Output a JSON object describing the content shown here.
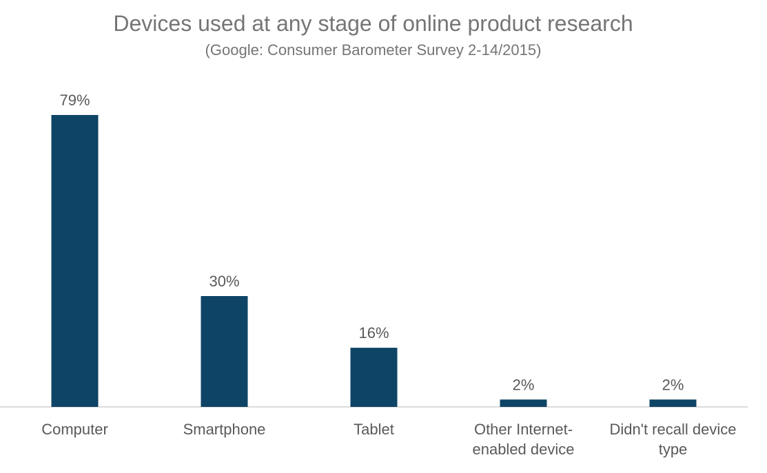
{
  "chart_data": {
    "type": "bar",
    "title": "Devices used at any stage of online product research",
    "subtitle": "(Google: Consumer Barometer Survey 2-14/2015)",
    "categories": [
      [
        "Computer"
      ],
      [
        "Smartphone"
      ],
      [
        "Tablet"
      ],
      [
        "Other Internet-",
        "enabled device"
      ],
      [
        "Didn't recall device",
        "type"
      ]
    ],
    "values": [
      79,
      30,
      16,
      2,
      2
    ],
    "data_labels": [
      "79%",
      "30%",
      "16%",
      "2%",
      "2%"
    ],
    "xlabel": "",
    "ylabel": "",
    "ylim": [
      0,
      79
    ],
    "grid": false,
    "legend": "none",
    "colors": {
      "bar": "#0e4466",
      "text": "#595959",
      "title": "#757575",
      "axis": "#d0d0d0"
    }
  }
}
